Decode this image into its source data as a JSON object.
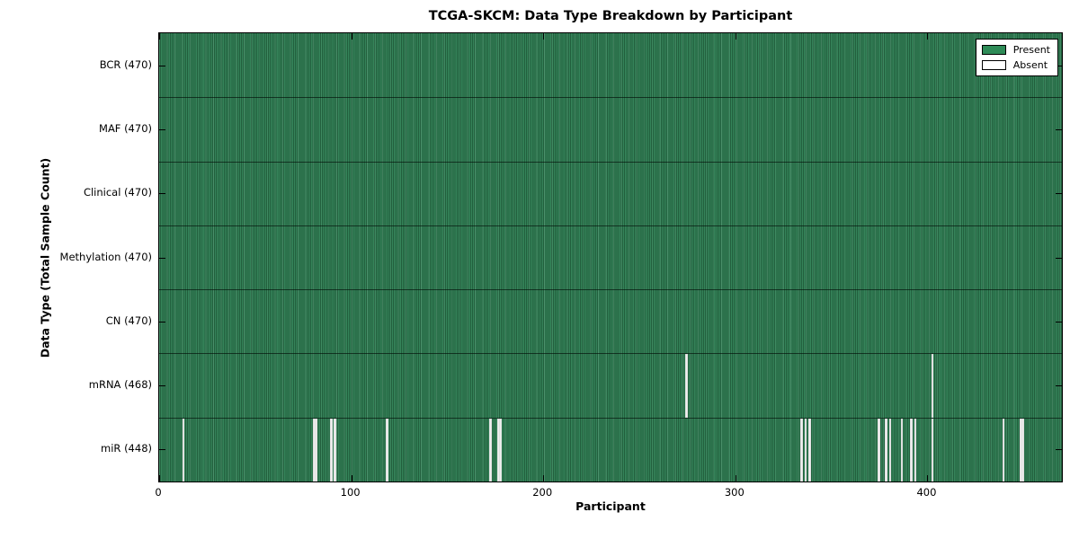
{
  "figure": {
    "title": "TCGA-SKCM: Data Type Breakdown by Participant"
  },
  "colors": {
    "present_green": "#2E8B57",
    "present_stripe_dark": "#225f3d",
    "absent_white": "#efefef",
    "axis_black": "#000000",
    "background": "#ffffff"
  },
  "chart_data": {
    "type": "heatmap",
    "title": "TCGA-SKCM: Data Type Breakdown by Participant",
    "xlabel": "Participant",
    "ylabel": "Data Type (Total Sample Count)",
    "xlim": [
      0,
      470
    ],
    "n_participants": 470,
    "x_ticks": [
      0,
      100,
      200,
      300,
      400
    ],
    "grid": false,
    "legend_position": "upper right",
    "legend": [
      {
        "label": "Present",
        "color": "#2E8B57"
      },
      {
        "label": "Absent",
        "color": "#ffffff"
      }
    ],
    "rows": [
      {
        "label": "BCR (470)",
        "data_type": "BCR",
        "present_count": 470,
        "absent_participants": []
      },
      {
        "label": "MAF (470)",
        "data_type": "MAF",
        "present_count": 470,
        "absent_participants": []
      },
      {
        "label": "Clinical (470)",
        "data_type": "Clinical",
        "present_count": 470,
        "absent_participants": []
      },
      {
        "label": "Methylation (470)",
        "data_type": "Methylation",
        "present_count": 470,
        "absent_participants": []
      },
      {
        "label": "CN (470)",
        "data_type": "CN",
        "present_count": 470,
        "absent_participants": []
      },
      {
        "label": "mRNA (468)",
        "data_type": "mRNA",
        "present_count": 468,
        "absent_participants": [
          274,
          402
        ]
      },
      {
        "label": "miR (448)",
        "data_type": "miR",
        "present_count": 448,
        "absent_participants": [
          12,
          80,
          81,
          89,
          91,
          118,
          172,
          176,
          177,
          334,
          336,
          338,
          374,
          378,
          380,
          386,
          391,
          393,
          402,
          439,
          448,
          449
        ]
      }
    ]
  }
}
